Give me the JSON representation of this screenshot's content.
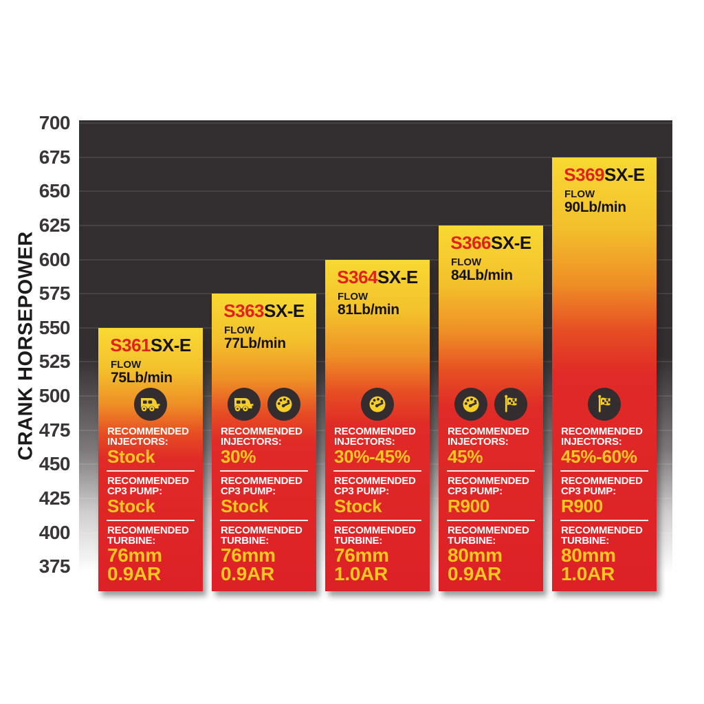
{
  "chart_data": {
    "type": "bar",
    "title": "",
    "ylabel": "CRANK HORSEPOWER",
    "xlabel": "",
    "ylim": [
      357,
      702
    ],
    "y_ticks": [
      700,
      675,
      650,
      625,
      600,
      575,
      550,
      525,
      500,
      475,
      450,
      425,
      400,
      375
    ],
    "grid": true,
    "legend": "none",
    "categories": [
      "S361SX-E",
      "S363SX-E",
      "S364SX-E",
      "S366SX-E",
      "S369SX-E"
    ],
    "values": [
      550,
      575,
      600,
      625,
      675
    ],
    "section_labels": {
      "flow": "FLOW",
      "recommended": "RECOMMENDED",
      "injectors": "INJECTORS:",
      "cp3_pump": "CP3 PUMP:",
      "turbine": "TURBINE:"
    },
    "bars": [
      {
        "model_prefix": "S361",
        "model_suffix": "SX-E",
        "flow": "75Lb/min",
        "crank_hp": 550,
        "icons": [
          "truck-icon"
        ],
        "injectors": "Stock",
        "cp3_pump": "Stock",
        "turbine": [
          "76mm",
          "0.9AR"
        ]
      },
      {
        "model_prefix": "S363",
        "model_suffix": "SX-E",
        "flow": "77Lb/min",
        "crank_hp": 575,
        "icons": [
          "truck-icon",
          "gauge-icon"
        ],
        "injectors": "30%",
        "cp3_pump": "Stock",
        "turbine": [
          "76mm",
          "0.9AR"
        ]
      },
      {
        "model_prefix": "S364",
        "model_suffix": "SX-E",
        "flow": "81Lb/min",
        "crank_hp": 600,
        "icons": [
          "gauge-icon"
        ],
        "injectors": "30%-45%",
        "cp3_pump": "Stock",
        "turbine": [
          "76mm",
          "1.0AR"
        ]
      },
      {
        "model_prefix": "S366",
        "model_suffix": "SX-E",
        "flow": "84Lb/min",
        "crank_hp": 625,
        "icons": [
          "gauge-icon",
          "flag-icon"
        ],
        "injectors": "45%",
        "cp3_pump": "R900",
        "turbine": [
          "80mm",
          "0.9AR"
        ]
      },
      {
        "model_prefix": "S369",
        "model_suffix": "SX-E",
        "flow": "90Lb/min",
        "crank_hp": 675,
        "icons": [
          "flag-icon"
        ],
        "injectors": "45%-60%",
        "cp3_pump": "R900",
        "turbine": [
          "80mm",
          "1.0AR"
        ]
      }
    ]
  },
  "colors": {
    "plot_bg": "#332e30",
    "bar_top_yellow": "#f8d932",
    "bar_bottom_red": "#dd2127",
    "model_red": "#e3211c",
    "value_yellow": "#fcc71f",
    "label_white": "#ffffff",
    "axis_text": "#3a3536",
    "icon_glyph_yellow": "#f6ce29"
  }
}
